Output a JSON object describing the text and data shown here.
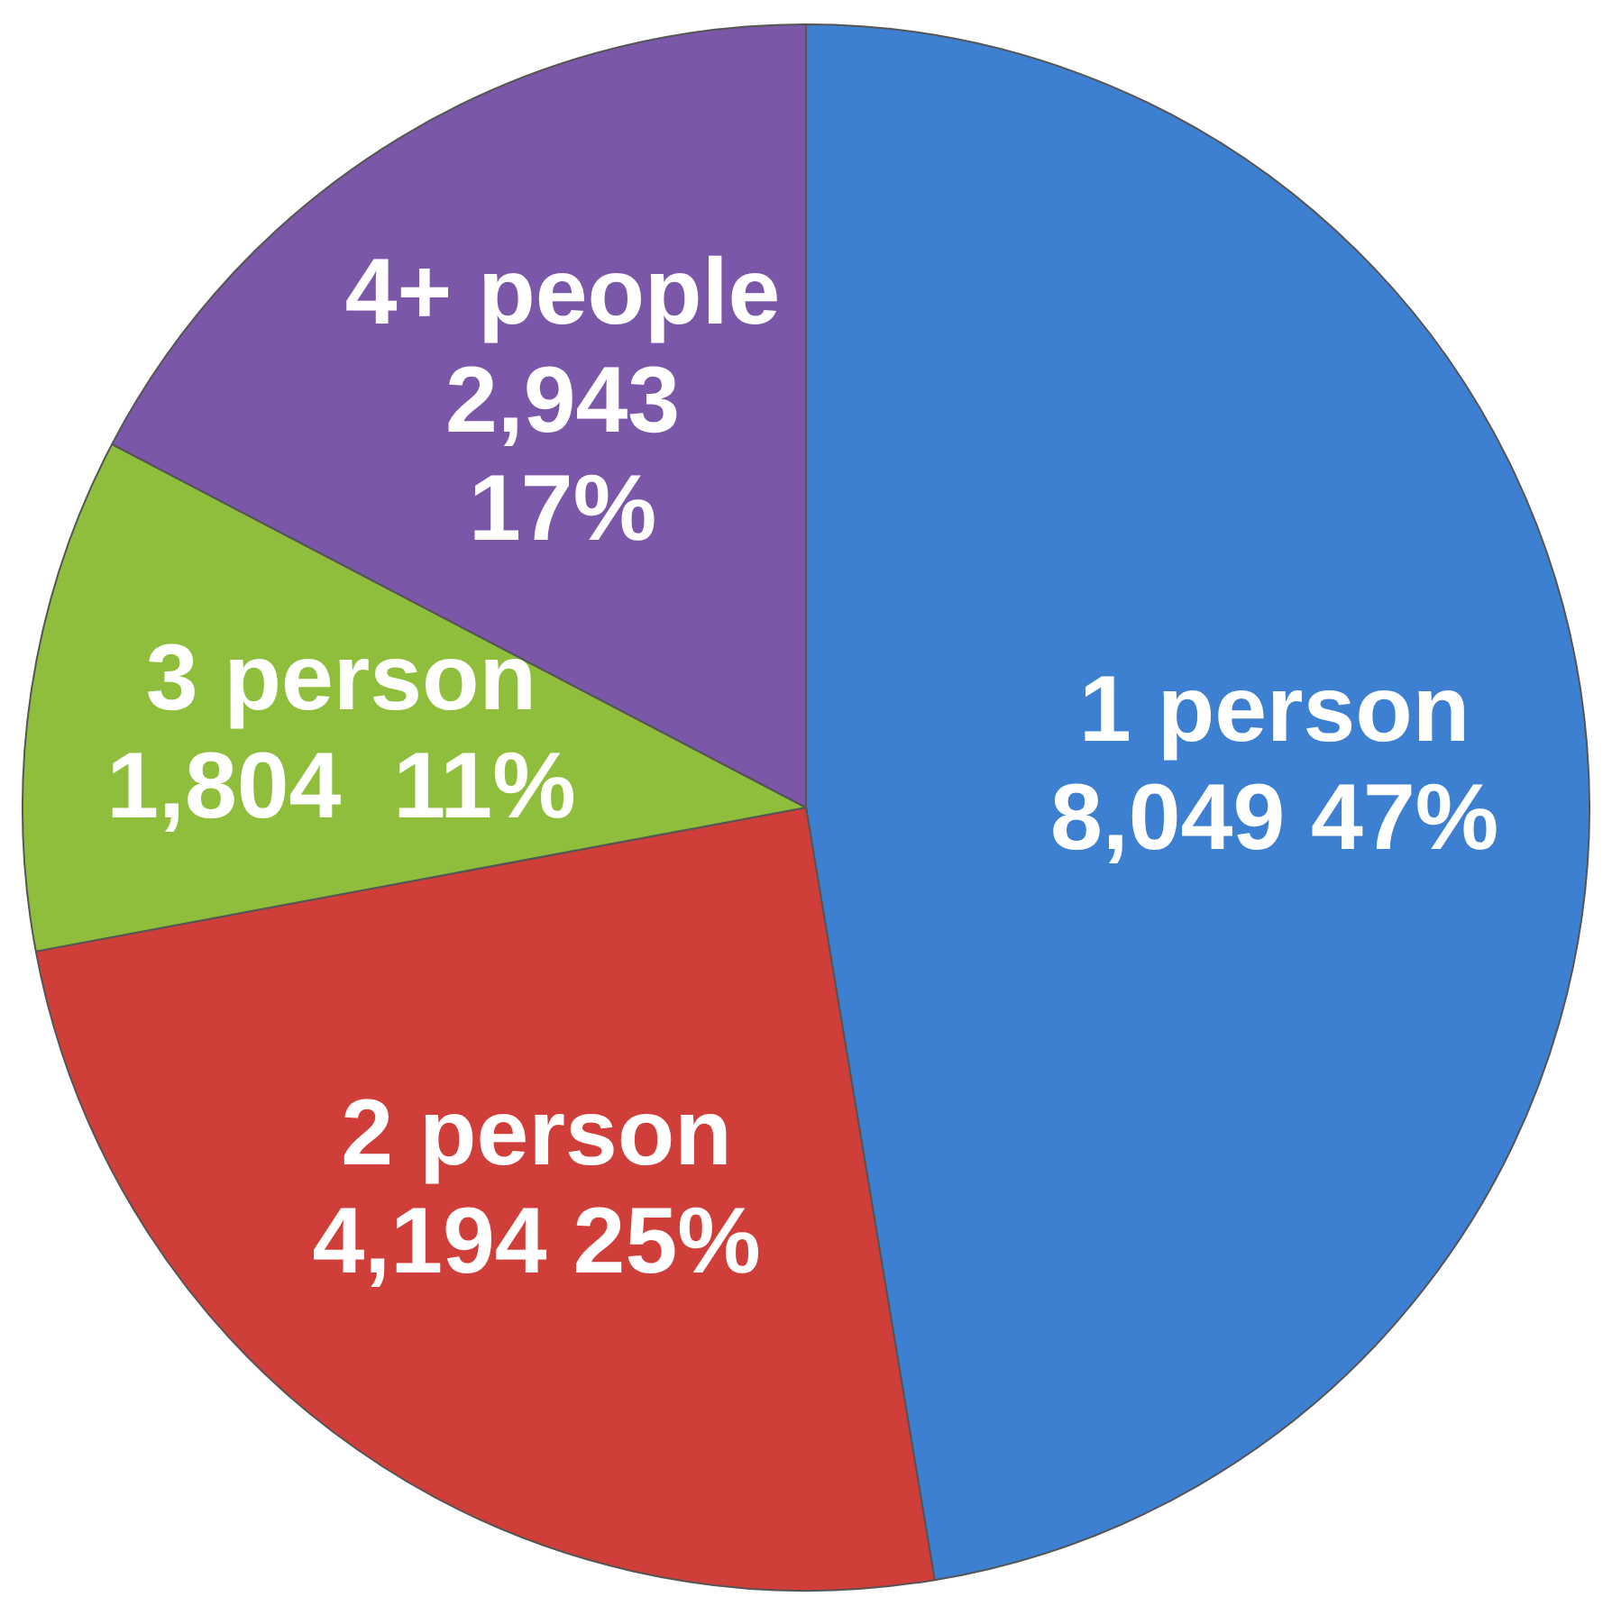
{
  "chart_data": {
    "type": "pie",
    "categories": [
      "1 person",
      "2 person",
      "3 person",
      "4+ people"
    ],
    "values": [
      8049,
      4194,
      1804,
      2943
    ],
    "value_labels": [
      "8,049 47%",
      "4,194 25%",
      "1,804  11%",
      "2,943\n17%"
    ],
    "colors": [
      "#3d7fd0",
      "#d03e3a",
      "#8fbe3c",
      "#7a57a8"
    ],
    "legend": false
  }
}
